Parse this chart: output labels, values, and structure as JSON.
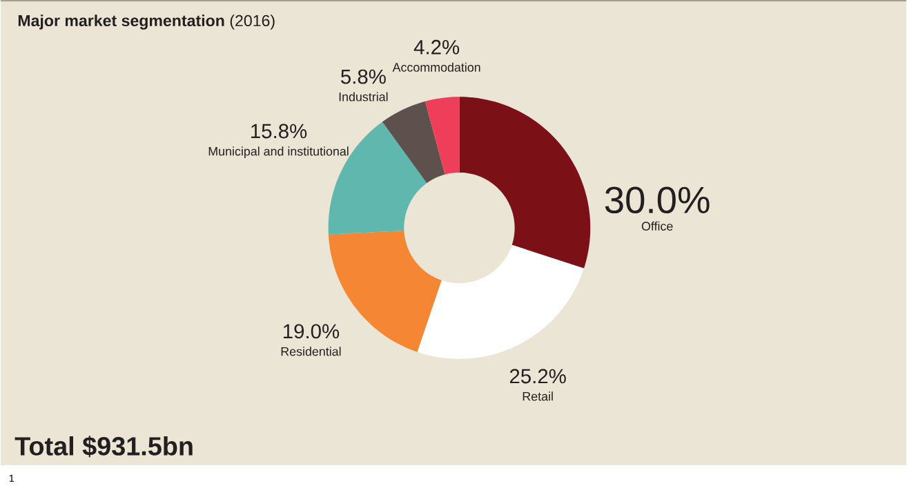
{
  "chart_data": {
    "type": "donut",
    "title": "**Major market segmentation** (2016)",
    "categories": [
      "Office",
      "Retail",
      "Residential",
      "Municipal and institutional",
      "Industrial",
      "Accommodation"
    ],
    "values": [
      30.0,
      25.2,
      19.0,
      15.8,
      5.8,
      4.2
    ],
    "value_labels": [
      "30.0%",
      "25.2%",
      "19.0%",
      "15.8%",
      "5.8%",
      "4.2%"
    ],
    "colors": [
      "#7b1116",
      "#ffffff",
      "#f58634",
      "#5fb7ae",
      "#5d504d",
      "#ef3e5a"
    ],
    "annotations": [
      "Total $931.5bn",
      "1"
    ]
  }
}
